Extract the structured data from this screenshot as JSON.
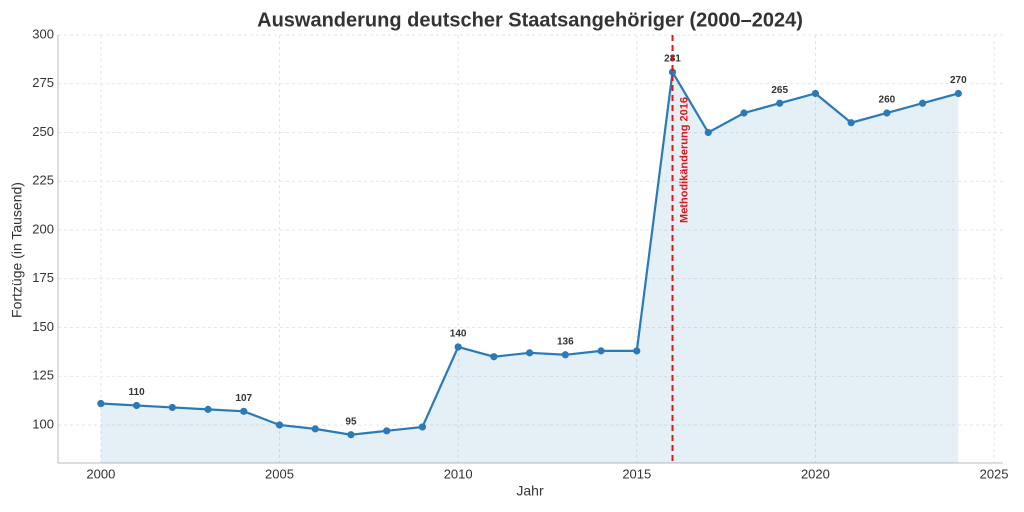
{
  "chart_data": {
    "type": "line",
    "title": "Auswanderung deutscher Staatsangehöriger (2000–2024)",
    "x_label": "Jahr",
    "y_label": "Fortzüge (in Tausend)",
    "x": [
      2000,
      2001,
      2002,
      2003,
      2004,
      2005,
      2006,
      2007,
      2008,
      2009,
      2010,
      2011,
      2012,
      2013,
      2014,
      2015,
      2016,
      2017,
      2018,
      2019,
      2020,
      2021,
      2022,
      2023,
      2024
    ],
    "series": [
      {
        "name": "Fortzüge",
        "color": "#2a7ab8",
        "values": [
          111,
          110,
          109,
          108,
          107,
          100,
          98,
          95,
          97,
          99,
          140,
          135,
          137,
          136,
          138,
          138,
          281,
          250,
          260,
          265,
          270,
          255,
          260,
          265,
          270
        ],
        "value_labels": [
          null,
          "110",
          null,
          null,
          "107",
          null,
          null,
          "95",
          null,
          null,
          "140",
          null,
          null,
          "136",
          null,
          null,
          "281",
          null,
          null,
          "265",
          null,
          null,
          "260",
          null,
          "270"
        ]
      }
    ],
    "xlim": [
      1998.8,
      2025.25
    ],
    "ylim": [
      80.5,
      300
    ],
    "xticks": [
      2000,
      2005,
      2010,
      2015,
      2020,
      2025
    ],
    "yticks": [
      100,
      125,
      150,
      175,
      200,
      225,
      250,
      275,
      300
    ],
    "grid": true,
    "fill": true,
    "vline": {
      "x": 2016,
      "label": "Methodikänderung 2016",
      "color": "#e0161b"
    }
  }
}
